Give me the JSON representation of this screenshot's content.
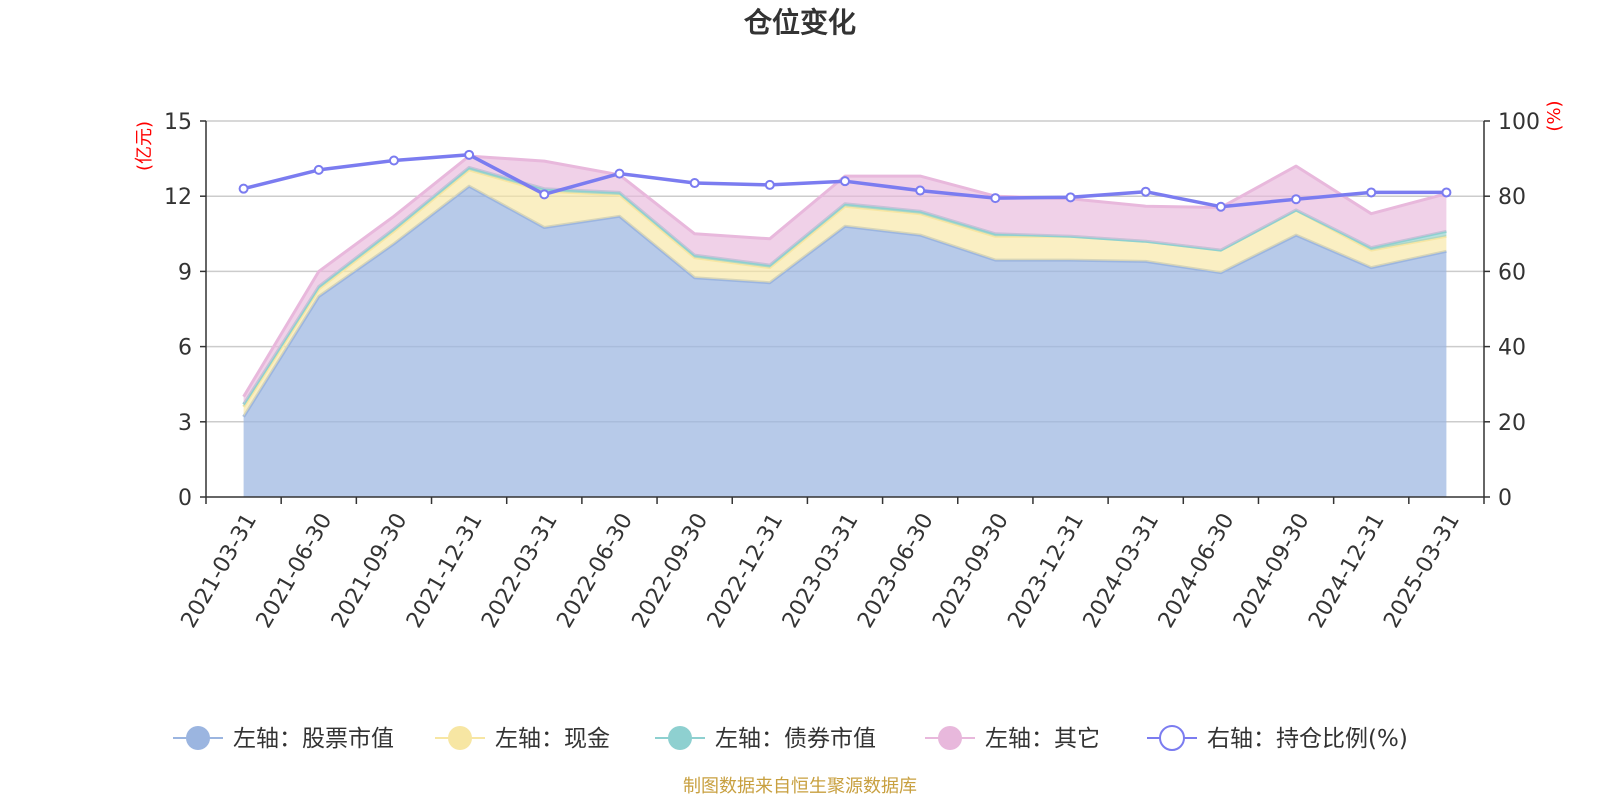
{
  "chart_data": {
    "type": "area",
    "title": "仓位变化",
    "categories": [
      "2021-03-31",
      "2021-06-30",
      "2021-09-30",
      "2021-12-31",
      "2022-03-31",
      "2022-06-30",
      "2022-09-30",
      "2022-12-31",
      "2023-03-31",
      "2023-06-30",
      "2023-09-30",
      "2023-12-31",
      "2024-03-31",
      "2024-06-30",
      "2024-09-30",
      "2024-12-31",
      "2025-03-31"
    ],
    "left_axis": {
      "unit_label": "(亿元)",
      "ylim": [
        0,
        15
      ],
      "ticks": [
        "0",
        "3",
        "6",
        "9",
        "12",
        "15"
      ]
    },
    "right_axis": {
      "unit_label": "(%)",
      "ylim": [
        0,
        100
      ],
      "ticks": [
        "0",
        "20",
        "40",
        "60",
        "80",
        "100"
      ]
    },
    "stacked": true,
    "series": [
      {
        "name": "左轴：股票市值",
        "axis": "left",
        "color": "#9bb5e0",
        "values": [
          3.2,
          8.0,
          10.1,
          12.4,
          10.75,
          11.2,
          8.75,
          8.55,
          10.8,
          10.45,
          9.45,
          9.45,
          9.4,
          8.95,
          10.45,
          9.15,
          9.8
        ]
      },
      {
        "name": "左轴：现金",
        "axis": "left",
        "color": "#f7e6a3",
        "values": [
          0.4,
          0.3,
          0.5,
          0.65,
          1.45,
          0.85,
          0.8,
          0.6,
          0.8,
          0.85,
          0.95,
          0.95,
          0.8,
          0.9,
          1.0,
          0.7,
          0.6
        ]
      },
      {
        "name": "左轴：债券市值",
        "axis": "left",
        "color": "#8ed0d0",
        "values": [
          0.1,
          0.1,
          0.1,
          0.1,
          0.1,
          0.1,
          0.1,
          0.1,
          0.1,
          0.1,
          0.1,
          0.0,
          0.0,
          0.0,
          0.0,
          0.1,
          0.2
        ]
      },
      {
        "name": "左轴：其它",
        "axis": "left",
        "color": "#e8b8dc",
        "values": [
          0.3,
          0.6,
          0.5,
          0.45,
          1.1,
          0.7,
          0.85,
          1.05,
          1.1,
          1.4,
          1.5,
          1.5,
          1.4,
          1.7,
          1.75,
          1.35,
          1.5
        ]
      },
      {
        "name": "右轴：持仓比例(%)",
        "axis": "right",
        "color": "#7b7cf0",
        "values": [
          82,
          87,
          89.5,
          91,
          80.5,
          86,
          83.5,
          83,
          84,
          81.5,
          79.5,
          79.7,
          81.2,
          77.2,
          79.2,
          81,
          81
        ]
      }
    ],
    "grid": true,
    "legend_position": "bottom",
    "footer": "制图数据来自恒生聚源数据库"
  }
}
